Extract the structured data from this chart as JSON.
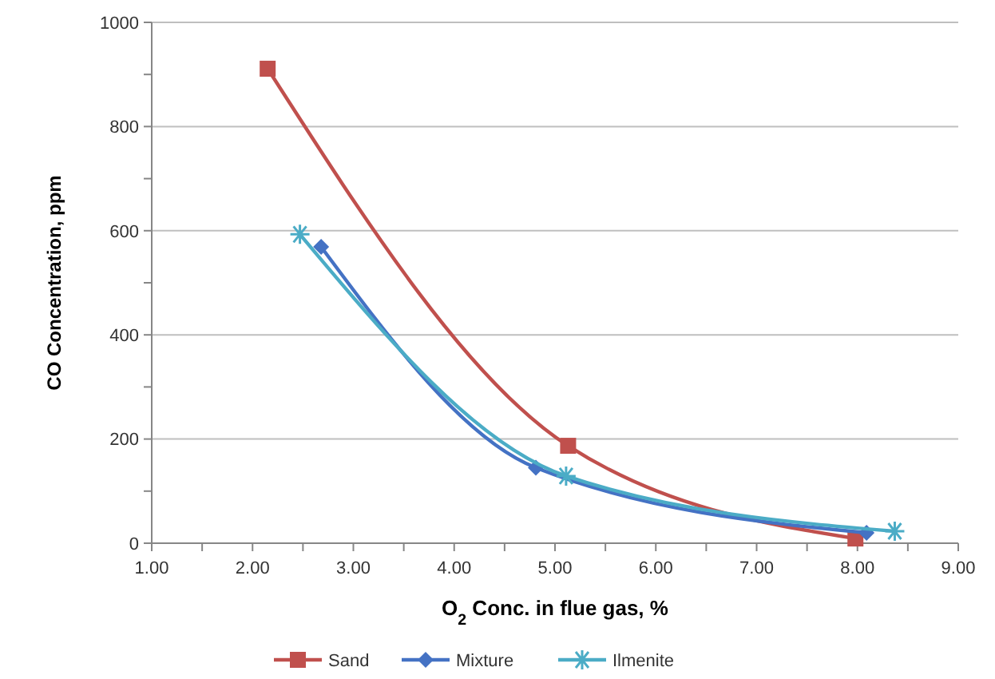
{
  "chart_data": {
    "type": "line",
    "xlabel": "O$_{2}$ Conc. in flue gas, %",
    "ylabel": "CO Concentration, ppm",
    "xlim": [
      1,
      9
    ],
    "xticks": [
      {
        "value": 1,
        "label": "1.00"
      },
      {
        "value": 1.5,
        "label": null
      },
      {
        "value": 2,
        "label": "2.00"
      },
      {
        "value": 2.5,
        "label": null
      },
      {
        "value": 3,
        "label": "3.00"
      },
      {
        "value": 3.5,
        "label": null
      },
      {
        "value": 4,
        "label": "4.00"
      },
      {
        "value": 4.5,
        "label": null
      },
      {
        "value": 5,
        "label": "5.00"
      },
      {
        "value": 5.5,
        "label": null
      },
      {
        "value": 6,
        "label": "6.00"
      },
      {
        "value": 6.5,
        "label": null
      },
      {
        "value": 7,
        "label": "7.00"
      },
      {
        "value": 7.5,
        "label": null
      },
      {
        "value": 8,
        "label": "8.00"
      },
      {
        "value": 8.5,
        "label": null
      },
      {
        "value": 9,
        "label": "9.00"
      }
    ],
    "ylim": [
      0,
      1000
    ],
    "yticks": [
      0,
      {
        "value": 100,
        "label": null
      },
      200,
      {
        "value": 300,
        "label": null
      },
      400,
      {
        "value": 500,
        "label": null
      },
      600,
      {
        "value": 700,
        "label": null
      },
      800,
      {
        "value": 900,
        "label": null
      },
      1000
    ],
    "grid": "y",
    "legend": "bottom",
    "series": [
      {
        "name": "Sand",
        "color": "#c0504d",
        "marker": "square",
        "x": [
          2.15,
          5.13,
          7.98
        ],
        "values": [
          911,
          187,
          9
        ]
      },
      {
        "name": "Mixture",
        "color": "#4472c4",
        "marker": "diamond",
        "x": [
          2.68,
          4.81,
          8.09
        ],
        "values": [
          569,
          145,
          20
        ]
      },
      {
        "name": "Ilmenite",
        "color": "#4bacc6",
        "marker": "cross",
        "x": [
          2.47,
          5.11,
          8.37
        ],
        "values": [
          593,
          129,
          23
        ]
      }
    ]
  }
}
